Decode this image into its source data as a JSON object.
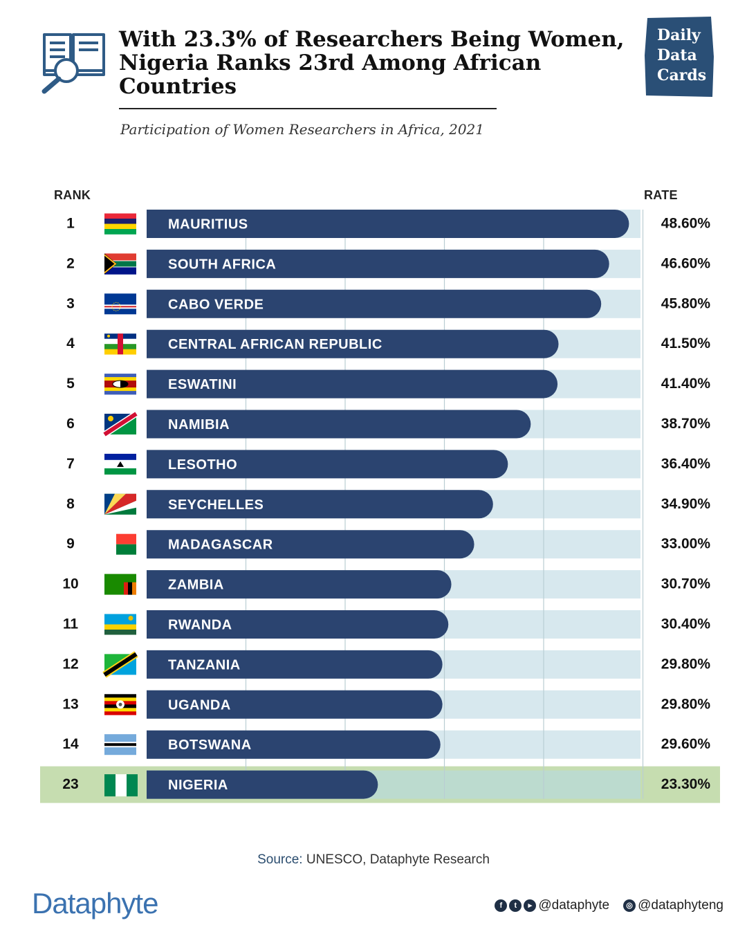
{
  "header": {
    "title": "With 23.3% of Researchers Being Women, Nigeria Ranks 23rd Among African Countries",
    "subtitle": "Participation of Women Researchers in Africa, 2021",
    "badge_lines": [
      "Daily",
      "Data",
      "Cards"
    ]
  },
  "columns": {
    "rank": "RANK",
    "rate": "RATE"
  },
  "chart_data": {
    "type": "bar",
    "orientation": "horizontal",
    "title": "With 23.3% of Researchers Being Women, Nigeria Ranks 23rd Among African Countries",
    "subtitle": "Participation of Women Researchers in Africa, 2021",
    "xlim": [
      0,
      50
    ],
    "grid": true,
    "value_suffix": "%",
    "highlight": "NIGERIA",
    "rows": [
      {
        "rank": "1",
        "country": "MAURITIUS",
        "rate": "48.60%",
        "value": 48.6,
        "flag": "mauritius"
      },
      {
        "rank": "2",
        "country": "SOUTH AFRICA",
        "rate": "46.60%",
        "value": 46.6,
        "flag": "south-africa"
      },
      {
        "rank": "3",
        "country": "CABO VERDE",
        "rate": "45.80%",
        "value": 45.8,
        "flag": "cabo-verde"
      },
      {
        "rank": "4",
        "country": "CENTRAL AFRICAN REPUBLIC",
        "rate": "41.50%",
        "value": 41.5,
        "flag": "central-african-republic"
      },
      {
        "rank": "5",
        "country": "ESWATINI",
        "rate": "41.40%",
        "value": 41.4,
        "flag": "eswatini"
      },
      {
        "rank": "6",
        "country": "NAMIBIA",
        "rate": "38.70%",
        "value": 38.7,
        "flag": "namibia"
      },
      {
        "rank": "7",
        "country": "LESOTHO",
        "rate": "36.40%",
        "value": 36.4,
        "flag": "lesotho"
      },
      {
        "rank": "8",
        "country": "SEYCHELLES",
        "rate": "34.90%",
        "value": 34.9,
        "flag": "seychelles"
      },
      {
        "rank": "9",
        "country": "MADAGASCAR",
        "rate": "33.00%",
        "value": 33.0,
        "flag": "madagascar"
      },
      {
        "rank": "10",
        "country": "ZAMBIA",
        "rate": "30.70%",
        "value": 30.7,
        "flag": "zambia"
      },
      {
        "rank": "11",
        "country": "RWANDA",
        "rate": "30.40%",
        "value": 30.4,
        "flag": "rwanda"
      },
      {
        "rank": "12",
        "country": "TANZANIA",
        "rate": "29.80%",
        "value": 29.8,
        "flag": "tanzania"
      },
      {
        "rank": "13",
        "country": "UGANDA",
        "rate": "29.80%",
        "value": 29.8,
        "flag": "uganda"
      },
      {
        "rank": "14",
        "country": "BOTSWANA",
        "rate": "29.60%",
        "value": 29.6,
        "flag": "botswana"
      },
      {
        "rank": "23",
        "country": "NIGERIA",
        "rate": "23.30%",
        "value": 23.3,
        "flag": "nigeria"
      }
    ]
  },
  "colors": {
    "bar": "#2b4470",
    "track": "#d7e8ee",
    "highlight_row": "#c6ddb0",
    "grid": "#b9cdd3",
    "brand": "#3b72b0",
    "badge": "#2a4f76"
  },
  "footer": {
    "source_label": "Source:",
    "source_text": "UNESCO, Dataphyte Research",
    "logo": "Dataphyte",
    "social_handle_1": "@dataphyte",
    "social_handle_2": "@dataphyteng",
    "social_icons": [
      "facebook-icon",
      "twitter-icon",
      "youtube-icon",
      "instagram-icon"
    ]
  }
}
